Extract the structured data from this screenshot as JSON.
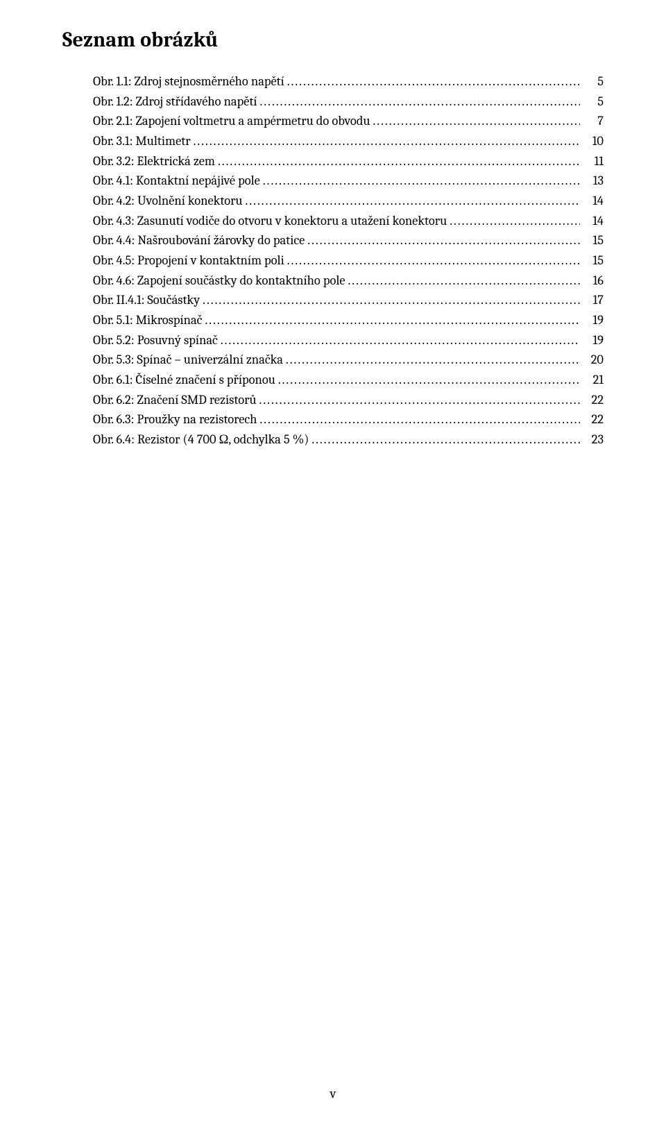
{
  "heading": "Seznam obrázků",
  "page_number_label": "v",
  "entries": [
    {
      "label": "Obr. 1.1: Zdroj stejnosměrného napětí",
      "page": "5"
    },
    {
      "label": "Obr. 1.2: Zdroj střídavého napětí",
      "page": "5"
    },
    {
      "label": "Obr. 2.1: Zapojení voltmetru a ampérmetru do obvodu",
      "page": "7"
    },
    {
      "label": "Obr. 3.1: Multimetr",
      "page": "10"
    },
    {
      "label": "Obr. 3.2: Elektrická zem",
      "page": "11"
    },
    {
      "label": "Obr. 4.1: Kontaktní nepájivé pole",
      "page": "13"
    },
    {
      "label": "Obr. 4.2: Uvolnění konektoru",
      "page": "14"
    },
    {
      "label": "Obr. 4.3: Zasunutí vodiče do otvoru v konektoru a utažení konektoru",
      "page": "14"
    },
    {
      "label": "Obr. 4.4: Našroubování žárovky do patice",
      "page": "15"
    },
    {
      "label": "Obr. 4.5: Propojení v kontaktním poli",
      "page": "15"
    },
    {
      "label": "Obr. 4.6: Zapojení součástky do kontaktního pole",
      "page": "16"
    },
    {
      "label": "Obr. II.4.1: Součástky",
      "page": "17"
    },
    {
      "label": "Obr. 5.1: Mikrospínač",
      "page": "19"
    },
    {
      "label": "Obr. 5.2: Posuvný spínač",
      "page": "19"
    },
    {
      "label": "Obr. 5.3: Spínač – univerzální značka",
      "page": "20"
    },
    {
      "label": "Obr. 6.1: Číselné značení s příponou",
      "page": "21"
    },
    {
      "label": "Obr. 6.2: Značení SMD rezistorů",
      "page": "22"
    },
    {
      "label": "Obr. 6.3: Proužky na rezistorech",
      "page": "22"
    },
    {
      "label": "Obr. 6.4: Rezistor (4 700  Ω, odchylka 5 %)",
      "page": "23"
    }
  ]
}
